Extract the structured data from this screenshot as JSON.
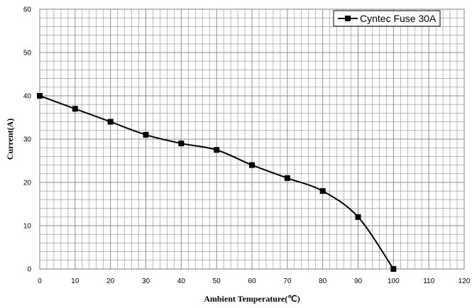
{
  "chart_data": {
    "type": "line",
    "title": "",
    "xlabel": "Ambient Temperature(℃)",
    "ylabel": "Current(A)",
    "xlim": [
      0,
      120
    ],
    "ylim": [
      0,
      60
    ],
    "x_ticks": [
      0,
      10,
      20,
      30,
      40,
      50,
      60,
      70,
      80,
      90,
      100,
      110,
      120
    ],
    "y_ticks": [
      0,
      10,
      20,
      30,
      40,
      50,
      60
    ],
    "grid": true,
    "legend_position": "top-right",
    "series": [
      {
        "name": "Cyntec Fuse 30A",
        "color": "#000000",
        "marker": "square",
        "smooth": true,
        "x": [
          0,
          10,
          20,
          30,
          40,
          50,
          60,
          70,
          80,
          90,
          100
        ],
        "y": [
          40,
          37,
          34,
          31,
          29,
          27.5,
          24,
          21,
          18,
          12,
          0
        ]
      }
    ]
  }
}
